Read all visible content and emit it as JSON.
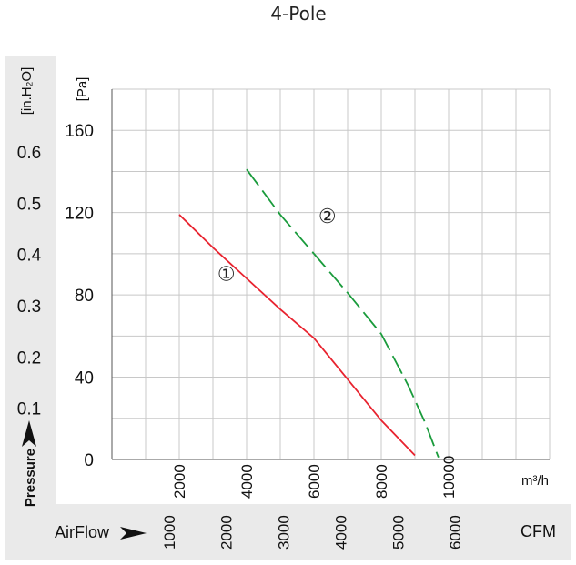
{
  "chart_data": {
    "type": "line",
    "title": "4-Pole",
    "x_primary": {
      "unit": "m³/h",
      "ticks": [
        "2000",
        "4000",
        "6000",
        "8000",
        "10000"
      ],
      "range": [
        0,
        13000
      ]
    },
    "x_secondary": {
      "unit": "CFM",
      "name": "AirFlow",
      "ticks": [
        "1000",
        "2000",
        "3000",
        "4000",
        "5000",
        "6000"
      ]
    },
    "y_primary": {
      "unit": "[Pa]",
      "ticks": [
        "0",
        "40",
        "80",
        "120",
        "160"
      ],
      "range": [
        0,
        180
      ]
    },
    "y_secondary": {
      "unit": "[in.H₂O]",
      "name": "Pressure",
      "ticks": [
        "0.1",
        "0.2",
        "0.3",
        "0.4",
        "0.5",
        "0.6"
      ]
    },
    "series": [
      {
        "name": "①",
        "color": "#e8232f",
        "style": "solid",
        "x": [
          2000,
          3000,
          4000,
          5000,
          6000,
          7000,
          8000,
          9000
        ],
        "y": [
          119,
          103,
          88,
          73,
          59,
          39,
          19,
          2
        ]
      },
      {
        "name": "②",
        "color": "#1a9b3c",
        "style": "dashed",
        "x": [
          4000,
          5000,
          6000,
          7000,
          8000,
          8800,
          9300,
          9700
        ],
        "y": [
          141,
          119,
          100,
          81,
          61,
          36,
          18,
          1
        ]
      }
    ],
    "grid": true,
    "legend": "inline labels on curves"
  }
}
